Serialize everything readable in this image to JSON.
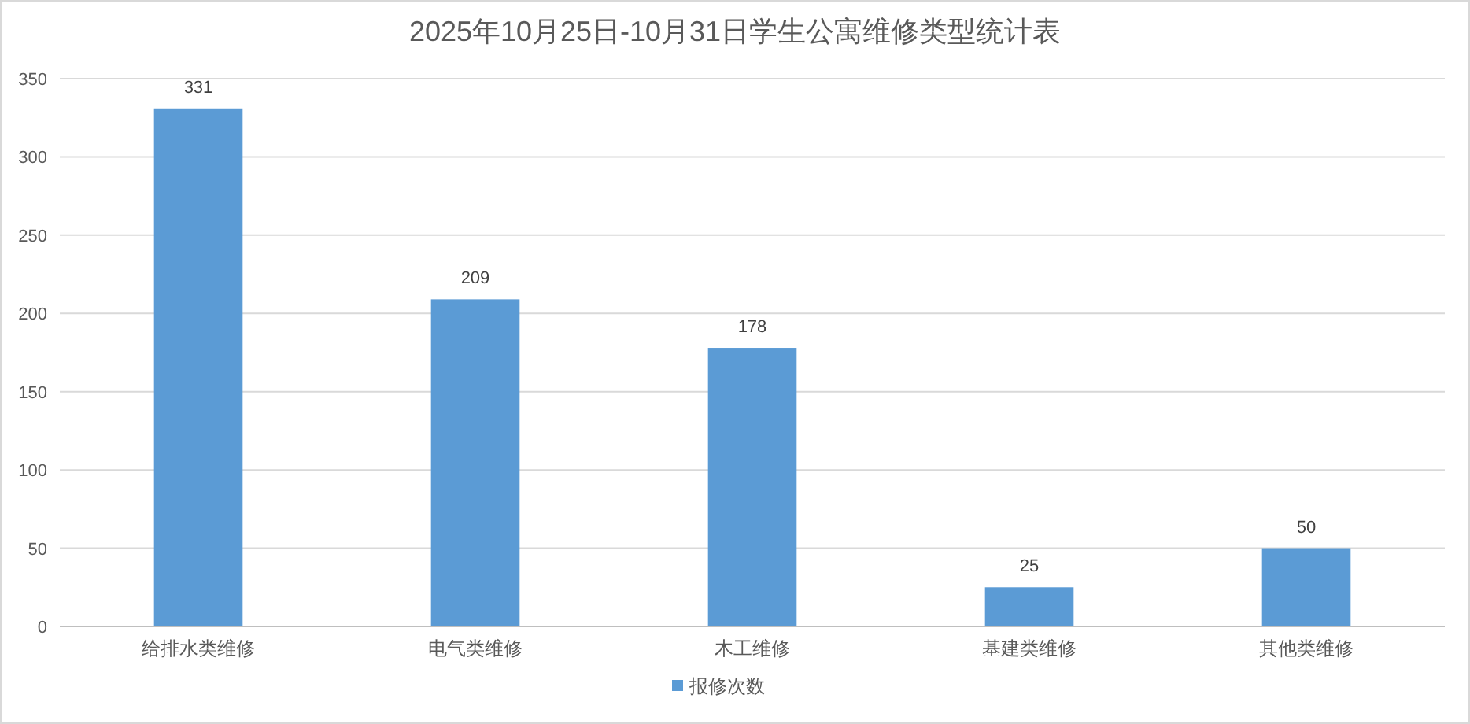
{
  "chart_data": {
    "type": "bar",
    "title": "2025年10月25日-10月31日学生公寓维修类型统计表",
    "categories": [
      "给排水类维修",
      "电气类维修",
      "木工维修",
      "基建类维修",
      "其他类维修"
    ],
    "series": [
      {
        "name": "报修次数",
        "color": "#5b9bd5",
        "values": [
          331,
          209,
          178,
          25,
          50
        ]
      }
    ],
    "ylim": [
      0,
      350
    ],
    "yticks": [
      0,
      50,
      100,
      150,
      200,
      250,
      300,
      350
    ],
    "grid": "y",
    "legend": "bottom",
    "data_labels": true
  }
}
